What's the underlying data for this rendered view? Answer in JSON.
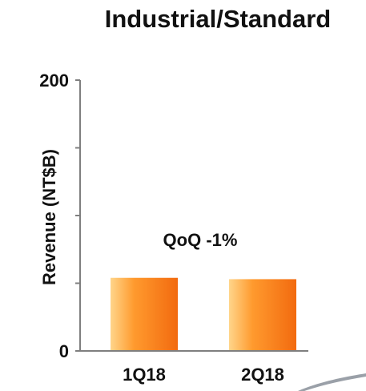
{
  "chart_data": {
    "type": "bar",
    "title": "Industrial/Standard",
    "ylabel": "Revenue (NT$B)",
    "xlabel": "",
    "categories": [
      "1Q18",
      "2Q18"
    ],
    "values": [
      54,
      53
    ],
    "ylim": [
      0,
      200
    ],
    "y_ticks_labeled": [
      "0",
      "200"
    ],
    "y_tick_values": [
      0,
      50,
      100,
      150,
      200
    ],
    "annotation": "QoQ -1%",
    "grid": false,
    "legend": "none",
    "bar_color_light": "#FFD58A",
    "bar_color_mid": "#FF9A2E",
    "bar_color_dark": "#F26A0F",
    "axis_color": "#7f7f7f",
    "decoration_color": "#9aa0a8"
  }
}
